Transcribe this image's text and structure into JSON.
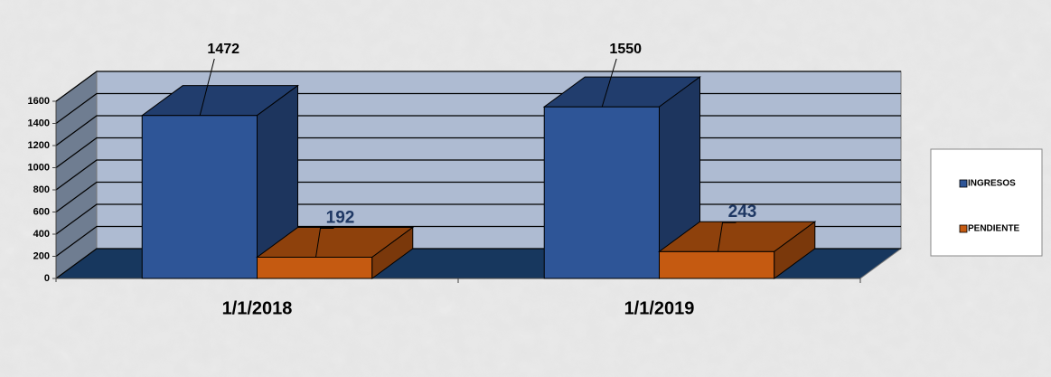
{
  "chart_data": {
    "type": "bar3d",
    "categories": [
      "1/1/2018",
      "1/1/2019"
    ],
    "series": [
      {
        "name": "INGRESOS",
        "color": "#2e5597",
        "values": [
          1472,
          1550
        ]
      },
      {
        "name": "PENDIENTE",
        "color": "#c55a11",
        "values": [
          192,
          243
        ]
      }
    ],
    "ylim": [
      0,
      1600
    ],
    "yticks": [
      0,
      200,
      400,
      600,
      800,
      1000,
      1200,
      1400,
      1600
    ],
    "grid": true,
    "legend": "right"
  }
}
